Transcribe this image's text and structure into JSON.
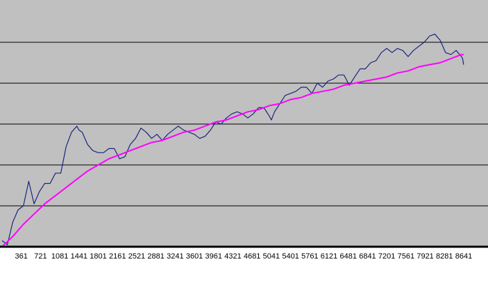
{
  "chart_data": {
    "type": "line",
    "title": "",
    "xlabel": "",
    "ylabel": "",
    "x_ticks": [
      361,
      721,
      1081,
      1441,
      1801,
      2161,
      2521,
      2881,
      3241,
      3601,
      3961,
      4321,
      4681,
      5041,
      5401,
      5761,
      6121,
      6481,
      6841,
      7201,
      7561,
      7921,
      8281,
      8641
    ],
    "xlim": [
      1,
      8800
    ],
    "ylim": [
      0,
      6
    ],
    "grid": {
      "horizontal": true,
      "vertical": false
    },
    "legend": "none",
    "colors": {
      "plot_background": "#c0c0c0",
      "grid": "#000000",
      "baseline": "#000000"
    },
    "series": [
      {
        "color": "#1a237e",
        "x": [
          1,
          100,
          200,
          300,
          400,
          500,
          600,
          700,
          800,
          900,
          1000,
          1100,
          1200,
          1300,
          1400,
          1441,
          1500,
          1600,
          1700,
          1800,
          1900,
          2000,
          2100,
          2200,
          2300,
          2400,
          2500,
          2600,
          2700,
          2800,
          2900,
          3000,
          3100,
          3200,
          3300,
          3400,
          3500,
          3600,
          3700,
          3800,
          3900,
          4000,
          4100,
          4200,
          4300,
          4400,
          4500,
          4600,
          4700,
          4800,
          4900,
          5000,
          5041,
          5100,
          5200,
          5300,
          5400,
          5500,
          5600,
          5700,
          5800,
          5900,
          6000,
          6100,
          6200,
          6300,
          6400,
          6500,
          6600,
          6700,
          6800,
          6900,
          7000,
          7100,
          7200,
          7300,
          7400,
          7500,
          7600,
          7700,
          7800,
          7900,
          8000,
          8100,
          8200,
          8300,
          8400,
          8500,
          8600,
          8620,
          8640
        ],
        "y": [
          0.15,
          0.05,
          0.6,
          0.9,
          1.0,
          1.6,
          1.05,
          1.35,
          1.55,
          1.55,
          1.8,
          1.8,
          2.45,
          2.8,
          2.95,
          2.85,
          2.8,
          2.5,
          2.35,
          2.3,
          2.3,
          2.4,
          2.4,
          2.15,
          2.2,
          2.5,
          2.65,
          2.9,
          2.8,
          2.65,
          2.75,
          2.6,
          2.75,
          2.85,
          2.95,
          2.85,
          2.8,
          2.75,
          2.65,
          2.7,
          2.85,
          3.05,
          3.0,
          3.15,
          3.25,
          3.3,
          3.25,
          3.15,
          3.25,
          3.4,
          3.4,
          3.2,
          3.1,
          3.3,
          3.5,
          3.7,
          3.75,
          3.8,
          3.9,
          3.9,
          3.75,
          4.0,
          3.9,
          4.05,
          4.1,
          4.2,
          4.2,
          3.95,
          4.15,
          4.35,
          4.35,
          4.5,
          4.55,
          4.75,
          4.85,
          4.75,
          4.85,
          4.8,
          4.65,
          4.8,
          4.9,
          5.0,
          5.15,
          5.2,
          5.05,
          4.75,
          4.7,
          4.8,
          4.65,
          4.6,
          4.45
        ]
      },
      {
        "color": "#ff00ff",
        "x": [
          1,
          200,
          400,
          600,
          800,
          1000,
          1200,
          1400,
          1600,
          1800,
          2000,
          2200,
          2400,
          2600,
          2800,
          3000,
          3200,
          3400,
          3600,
          3800,
          4000,
          4200,
          4400,
          4600,
          4800,
          5000,
          5200,
          5400,
          5600,
          5800,
          6000,
          6200,
          6400,
          6600,
          6800,
          7000,
          7200,
          7400,
          7600,
          7800,
          8000,
          8200,
          8400,
          8600,
          8640
        ],
        "y": [
          0.0,
          0.25,
          0.55,
          0.8,
          1.05,
          1.25,
          1.45,
          1.65,
          1.85,
          2.0,
          2.15,
          2.25,
          2.35,
          2.45,
          2.55,
          2.6,
          2.7,
          2.8,
          2.85,
          2.95,
          3.05,
          3.1,
          3.2,
          3.3,
          3.35,
          3.45,
          3.5,
          3.6,
          3.65,
          3.75,
          3.8,
          3.85,
          3.95,
          4.0,
          4.05,
          4.1,
          4.15,
          4.25,
          4.3,
          4.4,
          4.45,
          4.5,
          4.6,
          4.7,
          4.7
        ]
      }
    ]
  }
}
